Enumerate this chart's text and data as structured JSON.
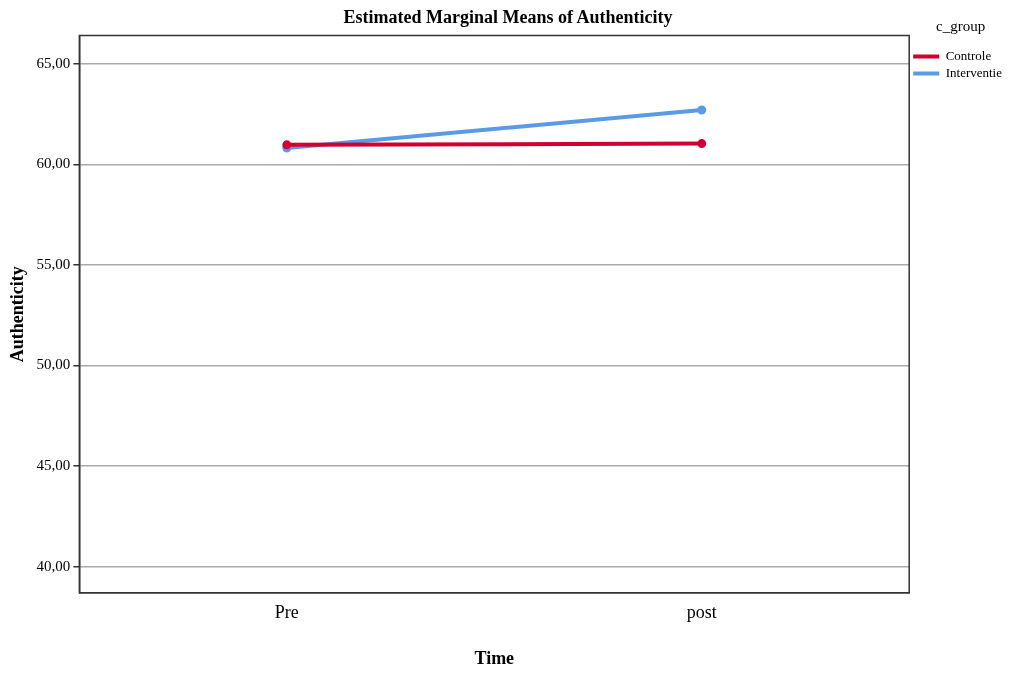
{
  "chart_data": {
    "type": "line",
    "title": "Estimated Marginal Means of Authenticity",
    "xlabel": "Time",
    "ylabel": "Authenticity",
    "legend_title": "c_group",
    "categories": [
      "Pre",
      "post"
    ],
    "series": [
      {
        "name": "Controle",
        "color": "#d20032",
        "values": [
          60.97,
          61.03
        ]
      },
      {
        "name": "Interventie",
        "color": "#5b9be6",
        "values": [
          60.81,
          62.7
        ]
      }
    ],
    "ylim": [
      38.7,
      66.4
    ],
    "yticks": [
      {
        "value": 40,
        "label": "40,00"
      },
      {
        "value": 45,
        "label": "45,00"
      },
      {
        "value": 50,
        "label": "50,00"
      },
      {
        "value": 55,
        "label": "55,00"
      },
      {
        "value": 60,
        "label": "60,00"
      },
      {
        "value": 65,
        "label": "65,00"
      }
    ],
    "grid": "y",
    "legend": "top right",
    "marker": "circle",
    "line_style": "solid"
  }
}
